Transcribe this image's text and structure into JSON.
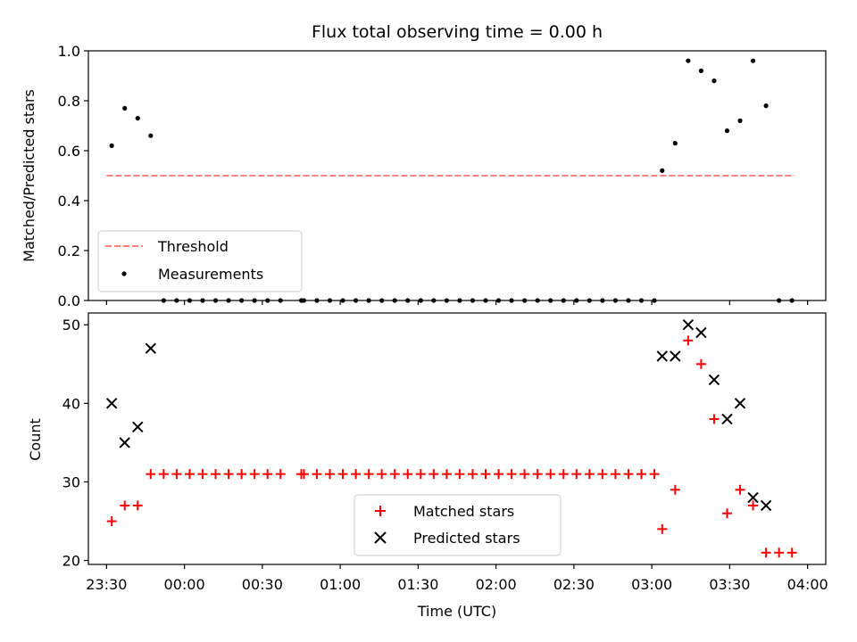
{
  "chart_data": [
    {
      "type": "scatter",
      "title": "Flux total observing time = 0.00 h",
      "ylabel": "Matched/Predicted stars",
      "xlabel": "",
      "xlim": [
        "23:23",
        "04:07"
      ],
      "ylim": [
        0,
        1.0
      ],
      "yticks": [
        "0.0",
        "0.2",
        "0.4",
        "0.6",
        "0.8",
        "1.0"
      ],
      "legend": "lower-left",
      "series": [
        {
          "name": "Threshold",
          "style": "dashed-line",
          "color": "#ff7f7f",
          "x": [
            "23:30",
            "03:55"
          ],
          "y": [
            0.5,
            0.5
          ]
        },
        {
          "name": "Measurements",
          "style": "dot",
          "color": "#000000",
          "x": [
            "23:32",
            "23:37",
            "23:42",
            "23:47",
            "23:52",
            "23:57",
            "00:02",
            "00:07",
            "00:12",
            "00:17",
            "00:22",
            "00:27",
            "00:32",
            "00:37",
            "00:45",
            "00:46",
            "00:51",
            "00:56",
            "01:01",
            "01:06",
            "01:11",
            "01:16",
            "01:21",
            "01:26",
            "01:31",
            "01:36",
            "01:41",
            "01:46",
            "01:51",
            "01:56",
            "02:01",
            "02:06",
            "02:11",
            "02:16",
            "02:21",
            "02:26",
            "02:31",
            "02:36",
            "02:41",
            "02:46",
            "02:51",
            "02:56",
            "03:01",
            "03:04",
            "03:09",
            "03:14",
            "03:19",
            "03:24",
            "03:29",
            "03:34",
            "03:39",
            "03:44",
            "03:49",
            "03:54"
          ],
          "y": [
            0.62,
            0.77,
            0.73,
            0.66,
            0.0,
            0.0,
            0.0,
            0.0,
            0.0,
            0.0,
            0.0,
            0.0,
            0.0,
            0.0,
            0.0,
            0.0,
            0.0,
            0.0,
            0.0,
            0.0,
            0.0,
            0.0,
            0.0,
            0.0,
            0.0,
            0.0,
            0.0,
            0.0,
            0.0,
            0.0,
            0.0,
            0.0,
            0.0,
            0.0,
            0.0,
            0.0,
            0.0,
            0.0,
            0.0,
            0.0,
            0.0,
            0.0,
            0.0,
            0.52,
            0.63,
            0.96,
            0.92,
            0.88,
            0.68,
            0.72,
            0.96,
            0.78,
            0.0,
            0.0
          ]
        }
      ]
    },
    {
      "type": "scatter",
      "title": "",
      "ylabel": "Count",
      "xlabel": "Time (UTC)",
      "xlim": [
        "23:23",
        "04:07"
      ],
      "ylim": [
        19.5,
        51.5
      ],
      "yticks": [
        "20",
        "30",
        "40",
        "50"
      ],
      "xticks": [
        "23:30",
        "00:00",
        "00:30",
        "01:00",
        "01:30",
        "02:00",
        "02:30",
        "03:00",
        "03:30",
        "04:00"
      ],
      "legend": "lower-center",
      "series": [
        {
          "name": "Matched stars",
          "style": "plus",
          "color": "#ff0000",
          "x": [
            "23:32",
            "23:37",
            "23:42",
            "23:47",
            "23:52",
            "23:57",
            "00:02",
            "00:07",
            "00:12",
            "00:17",
            "00:22",
            "00:27",
            "00:32",
            "00:37",
            "00:45",
            "00:46",
            "00:51",
            "00:56",
            "01:01",
            "01:06",
            "01:11",
            "01:16",
            "01:21",
            "01:26",
            "01:31",
            "01:36",
            "01:41",
            "01:46",
            "01:51",
            "01:56",
            "02:01",
            "02:06",
            "02:11",
            "02:16",
            "02:21",
            "02:26",
            "02:31",
            "02:36",
            "02:41",
            "02:46",
            "02:51",
            "02:56",
            "03:01",
            "03:04",
            "03:09",
            "03:14",
            "03:19",
            "03:24",
            "03:29",
            "03:34",
            "03:39",
            "03:44",
            "03:49",
            "03:54"
          ],
          "y": [
            25,
            27,
            27,
            31,
            31,
            31,
            31,
            31,
            31,
            31,
            31,
            31,
            31,
            31,
            31,
            31,
            31,
            31,
            31,
            31,
            31,
            31,
            31,
            31,
            31,
            31,
            31,
            31,
            31,
            31,
            31,
            31,
            31,
            31,
            31,
            31,
            31,
            31,
            31,
            31,
            31,
            31,
            31,
            24,
            29,
            48,
            45,
            38,
            26,
            29,
            27,
            21,
            21,
            21
          ]
        },
        {
          "name": "Predicted stars",
          "style": "x",
          "color": "#000000",
          "x": [
            "23:32",
            "23:37",
            "23:42",
            "23:47",
            "03:04",
            "03:09",
            "03:14",
            "03:19",
            "03:24",
            "03:29",
            "03:34",
            "03:39",
            "03:44"
          ],
          "y": [
            40,
            35,
            37,
            47,
            46,
            46,
            50,
            49,
            43,
            38,
            40,
            28,
            27
          ]
        }
      ]
    }
  ]
}
